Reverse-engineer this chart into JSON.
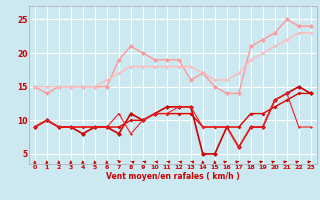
{
  "background_color": "#cce8f0",
  "grid_color": "#ffffff",
  "xlabel": "Vent moyen/en rafales ( km/h )",
  "xlim": [
    -0.5,
    23.5
  ],
  "ylim": [
    3.5,
    27
  ],
  "yticks": [
    5,
    10,
    15,
    20,
    25
  ],
  "xticks": [
    0,
    1,
    2,
    3,
    4,
    5,
    6,
    7,
    8,
    9,
    10,
    11,
    12,
    13,
    14,
    15,
    16,
    17,
    18,
    19,
    20,
    21,
    22,
    23
  ],
  "series": [
    {
      "x": [
        0,
        1,
        2,
        3,
        4,
        5,
        6,
        7,
        8,
        9,
        10,
        11,
        12,
        13,
        14,
        15,
        16,
        17,
        18,
        19,
        20,
        21,
        22,
        23
      ],
      "y": [
        15,
        14,
        15,
        15,
        15,
        15,
        15,
        19,
        21,
        20,
        19,
        19,
        19,
        16,
        17,
        15,
        14,
        14,
        21,
        22,
        23,
        25,
        24,
        24
      ],
      "color": "#ff9999",
      "lw": 1.0,
      "marker": "D",
      "ms": 2.5
    },
    {
      "x": [
        0,
        1,
        2,
        3,
        4,
        5,
        6,
        7,
        8,
        9,
        10,
        11,
        12,
        13,
        14,
        15,
        16,
        17,
        18,
        19,
        20,
        21,
        22,
        23
      ],
      "y": [
        15,
        15,
        15,
        15,
        15,
        15,
        16,
        17,
        18,
        18,
        18,
        18,
        18,
        18,
        17,
        16,
        16,
        17,
        19,
        20,
        21,
        22,
        23,
        23
      ],
      "color": "#ffbbbb",
      "lw": 1.0,
      "marker": "D",
      "ms": 2.0
    },
    {
      "x": [
        0,
        1,
        2,
        3,
        4,
        5,
        6,
        7,
        8,
        9,
        10,
        11,
        12,
        13,
        14,
        15,
        16,
        17,
        18,
        19,
        20,
        21,
        22,
        23
      ],
      "y": [
        9,
        10,
        9,
        9,
        8,
        9,
        9,
        8,
        11,
        10,
        11,
        12,
        12,
        12,
        5,
        5,
        9,
        6,
        9,
        9,
        13,
        14,
        15,
        14
      ],
      "color": "#cc0000",
      "lw": 1.2,
      "marker": "D",
      "ms": 2.5
    },
    {
      "x": [
        0,
        1,
        2,
        3,
        4,
        5,
        6,
        7,
        8,
        9,
        10,
        11,
        12,
        13,
        14,
        15,
        16,
        17,
        18,
        19,
        20,
        21,
        22,
        23
      ],
      "y": [
        9,
        10,
        9,
        9,
        9,
        9,
        9,
        9,
        10,
        10,
        11,
        11,
        11,
        11,
        9,
        9,
        9,
        9,
        11,
        11,
        12,
        13,
        14,
        14
      ],
      "color": "#dd0000",
      "lw": 1.0,
      "marker": "D",
      "ms": 2.0
    },
    {
      "x": [
        0,
        1,
        2,
        3,
        4,
        5,
        6,
        7,
        8,
        9,
        10,
        11,
        12,
        13,
        14,
        15,
        16,
        17,
        18,
        19,
        20,
        21,
        22,
        23
      ],
      "y": [
        9,
        10,
        9,
        9,
        9,
        9,
        9,
        11,
        8,
        10,
        11,
        11,
        12,
        12,
        9,
        9,
        9,
        6,
        9,
        9,
        13,
        14,
        9,
        9
      ],
      "color": "#ee2222",
      "lw": 0.8,
      "marker": "D",
      "ms": 1.5
    }
  ],
  "arrows": {
    "x": [
      0,
      1,
      2,
      3,
      4,
      5,
      6,
      7,
      8,
      9,
      10,
      11,
      12,
      13,
      14,
      15,
      16,
      17,
      18,
      19,
      20,
      21,
      22,
      23
    ],
    "angles_deg": [
      90,
      90,
      90,
      90,
      90,
      90,
      90,
      110,
      130,
      135,
      135,
      135,
      135,
      135,
      90,
      90,
      45,
      45,
      45,
      45,
      45,
      45,
      45,
      45
    ]
  }
}
